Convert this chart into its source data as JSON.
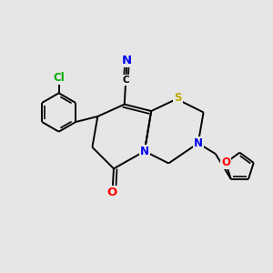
{
  "background_color": "#e6e6e6",
  "bond_color": "#000000",
  "atom_colors": {
    "C": "#000000",
    "N": "#0000ee",
    "O": "#ff0000",
    "S": "#bbaa00",
    "Cl": "#00aa00"
  },
  "figsize": [
    3.0,
    3.0
  ],
  "dpi": 100,
  "lw": 1.4,
  "fs": 8.5
}
